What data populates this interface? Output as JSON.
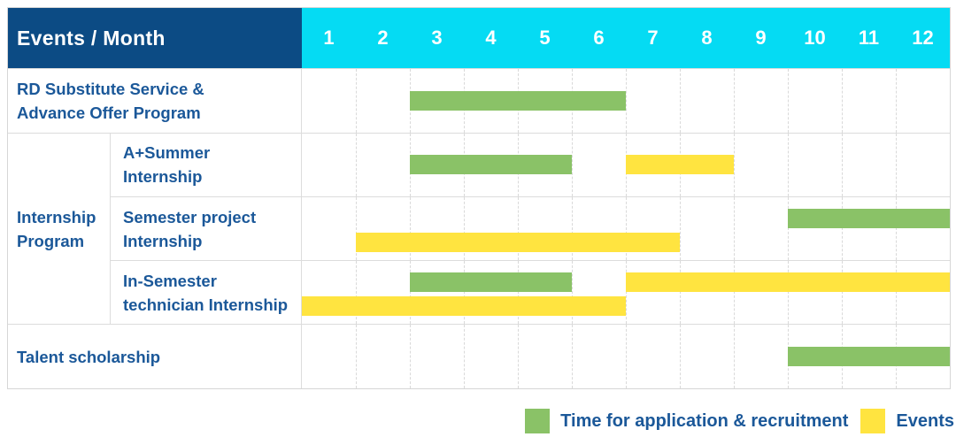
{
  "header": {
    "title": "Events / Month",
    "months": [
      "1",
      "2",
      "3",
      "4",
      "5",
      "6",
      "7",
      "8",
      "9",
      "10",
      "11",
      "12"
    ]
  },
  "colors": {
    "navy": "#0c4b84",
    "cyan": "#05dbf3",
    "green": "#8ac267",
    "yellow": "#ffe440",
    "label_blue": "#1b5899"
  },
  "legend": {
    "items": [
      {
        "label": "Time for application & recruitment",
        "color": "green"
      },
      {
        "label": "Events",
        "color": "yellow"
      }
    ]
  },
  "chart_data": {
    "type": "gantt",
    "unit": "month",
    "x_domain": [
      1,
      12
    ],
    "legend": {
      "green": "Time for application & recruitment",
      "yellow": "Events"
    },
    "rows": [
      {
        "label": "RD Substitute Service &\nAdvance Offer Program",
        "group": null,
        "lines": 1,
        "bars": [
          {
            "color": "green",
            "start": 3,
            "end": 6,
            "line": 0
          }
        ]
      },
      {
        "label": "A+Summer\nInternship",
        "group": "Internship\nProgram",
        "lines": 1,
        "bars": [
          {
            "color": "green",
            "start": 3,
            "end": 5,
            "line": 0
          },
          {
            "color": "yellow",
            "start": 7,
            "end": 8,
            "line": 0
          }
        ]
      },
      {
        "label": "Semester project\nInternship",
        "group": "Internship\nProgram",
        "lines": 2,
        "bars": [
          {
            "color": "green",
            "start": 10,
            "end": 12,
            "line": 0
          },
          {
            "color": "yellow",
            "start": 2,
            "end": 7,
            "line": 1
          }
        ]
      },
      {
        "label": "In-Semester\ntechnician Internship",
        "group": "Internship\nProgram",
        "lines": 2,
        "bars": [
          {
            "color": "green",
            "start": 3,
            "end": 5,
            "line": 0
          },
          {
            "color": "yellow",
            "start": 7,
            "end": 12,
            "line": 0
          },
          {
            "color": "yellow",
            "start": 1,
            "end": 6,
            "line": 1
          }
        ]
      },
      {
        "label": "Talent scholarship",
        "group": null,
        "lines": 1,
        "bars": [
          {
            "color": "green",
            "start": 10,
            "end": 12,
            "line": 0
          }
        ]
      }
    ]
  }
}
